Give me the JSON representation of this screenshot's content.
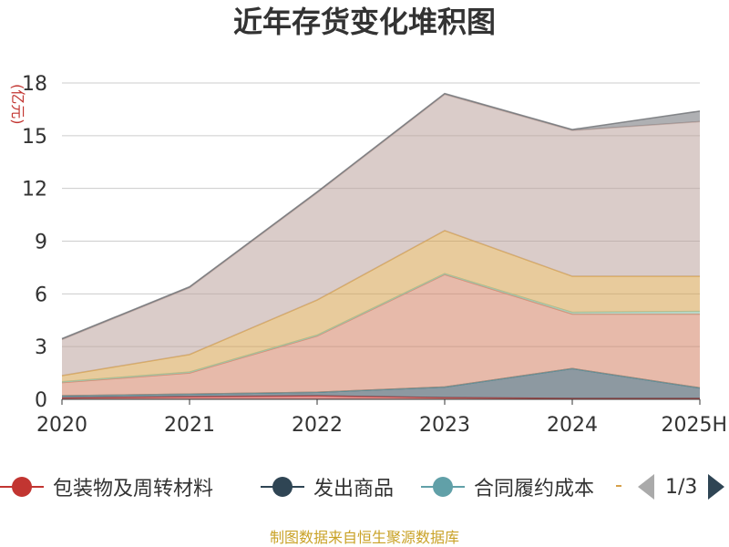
{
  "title": "近年存货变化堆积图",
  "source": "制图数据来自恒生聚源数据库",
  "chart_data": {
    "type": "area",
    "stacked": true,
    "title": "近年存货变化堆积图",
    "ylabel": "(亿元)",
    "xlabel": "",
    "categories": [
      "2020",
      "2021",
      "2022",
      "2023",
      "2024",
      "2025H"
    ],
    "ylim": [
      0,
      18
    ],
    "yticks": [
      0,
      3,
      6,
      9,
      12,
      15,
      18
    ],
    "grid": true,
    "legend_position": "bottom",
    "series": [
      {
        "name": "包装物及周转材料",
        "color": "#c23531",
        "values": [
          0.08,
          0.15,
          0.2,
          0.1,
          0.05,
          0.05
        ]
      },
      {
        "name": "发出商品",
        "color": "#2f4554",
        "values": [
          0.12,
          0.15,
          0.2,
          0.6,
          1.7,
          0.6
        ]
      },
      {
        "name": "合同履约成本",
        "color": "#61a0a8",
        "values": [
          0.0,
          0.0,
          0.0,
          0.0,
          0.0,
          0.0
        ]
      },
      {
        "name": "",
        "color": "#d48265",
        "values": [
          0.75,
          1.2,
          3.2,
          6.4,
          3.1,
          4.2
        ]
      },
      {
        "name": "",
        "color": "#91c7ae",
        "values": [
          0.05,
          0.05,
          0.05,
          0.05,
          0.1,
          0.15
        ]
      },
      {
        "name": "",
        "color": "#d6a04a",
        "values": [
          0.35,
          1.0,
          2.0,
          2.45,
          2.05,
          2.0
        ]
      },
      {
        "name": "",
        "color": "#bca39c",
        "values": [
          2.05,
          3.8,
          6.1,
          7.75,
          8.3,
          8.8
        ]
      },
      {
        "name": "",
        "color": "#6e7074",
        "values": [
          0.05,
          0.05,
          0.05,
          0.05,
          0.05,
          0.6
        ]
      }
    ]
  },
  "legend": {
    "items": [
      {
        "label": "包装物及周转材料",
        "color": "#c23531"
      },
      {
        "label": "发出商品",
        "color": "#2f4554"
      },
      {
        "label": "合同履约成本",
        "color": "#61a0a8"
      }
    ],
    "page": "1/3"
  }
}
